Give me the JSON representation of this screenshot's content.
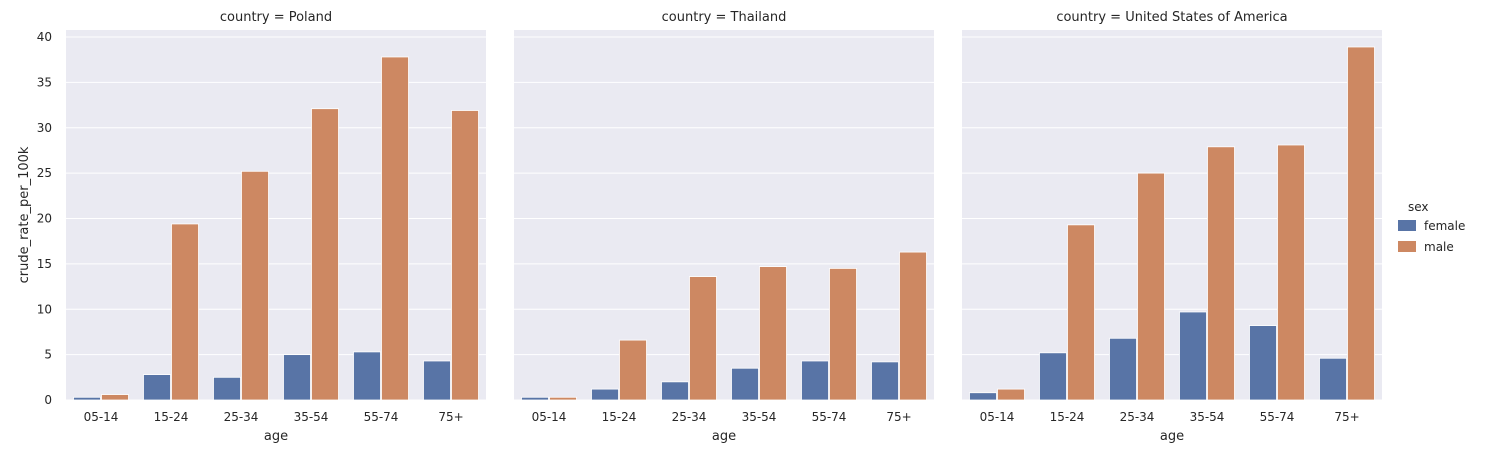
{
  "chart_data": {
    "type": "bar",
    "facet_variable": "country",
    "hue_variable": "sex",
    "xlabel": "age",
    "ylabel": "crude_rate_per_100k",
    "ylim": [
      0,
      40
    ],
    "yticks": [
      0,
      5,
      10,
      15,
      20,
      25,
      30,
      35,
      40
    ],
    "categories": [
      "05-14",
      "15-24",
      "25-34",
      "35-54",
      "55-74",
      "75+"
    ],
    "legend": {
      "title": "sex",
      "position": "right"
    },
    "colors": {
      "female": "#5874a6",
      "male": "#cd8862",
      "plot_bg": "#eaeaf2",
      "grid": "#ffffff"
    },
    "panels": [
      {
        "title": "country = Poland",
        "series": [
          {
            "name": "female",
            "values": [
              0.3,
              2.8,
              2.5,
              5.0,
              5.3,
              4.3
            ]
          },
          {
            "name": "male",
            "values": [
              0.6,
              19.4,
              25.2,
              32.1,
              37.8,
              31.9
            ]
          }
        ]
      },
      {
        "title": "country = Thailand",
        "series": [
          {
            "name": "female",
            "values": [
              0.3,
              1.2,
              2.0,
              3.5,
              4.3,
              4.2
            ]
          },
          {
            "name": "male",
            "values": [
              0.3,
              6.6,
              13.6,
              14.7,
              14.5,
              16.3
            ]
          }
        ]
      },
      {
        "title": "country = United States of America",
        "series": [
          {
            "name": "female",
            "values": [
              0.8,
              5.2,
              6.8,
              9.7,
              8.2,
              4.6
            ]
          },
          {
            "name": "male",
            "values": [
              1.2,
              19.3,
              25.0,
              27.9,
              28.1,
              38.9
            ]
          }
        ]
      }
    ]
  }
}
